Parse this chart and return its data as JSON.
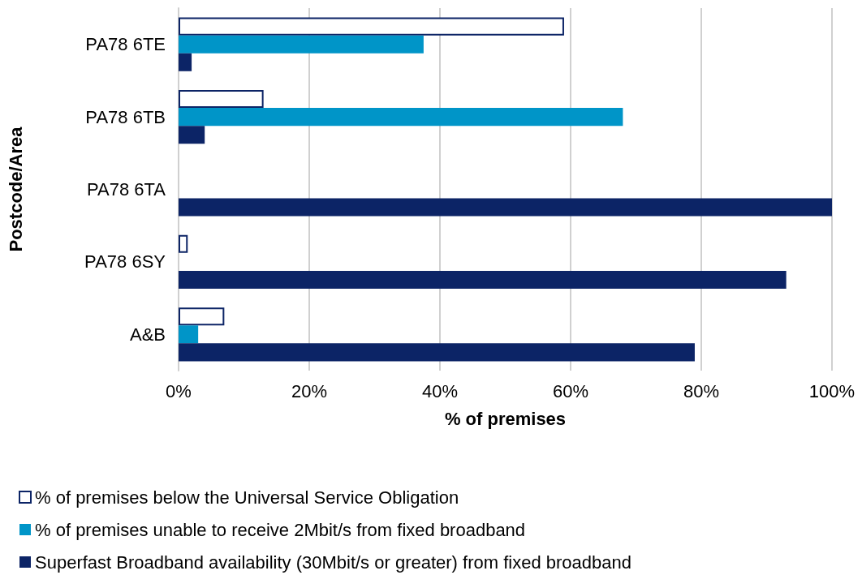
{
  "chart_data": {
    "type": "bar",
    "orientation": "horizontal",
    "categories": [
      "PA78 6TE",
      "PA78 6TB",
      "PA78 6TA",
      "PA78 6SY",
      "A&B"
    ],
    "series": [
      {
        "name": "% of premises below the Universal Service Obligation",
        "color": "#ffffff",
        "values": [
          59,
          13,
          null,
          1.4,
          7
        ]
      },
      {
        "name": "% of premises unable to receive 2Mbit/s from fixed broadband",
        "color": "#0095c8",
        "values": [
          37.5,
          68,
          null,
          null,
          3
        ]
      },
      {
        "name": "Superfast Broadband availability (30Mbit/s or greater) from fixed broadband",
        "color": "#0c2466",
        "values": [
          2,
          4,
          100,
          93,
          79
        ]
      }
    ],
    "xlim": [
      0,
      100
    ],
    "xticks": [
      {
        "value": 0,
        "label": "0%"
      },
      {
        "value": 20,
        "label": "20%"
      },
      {
        "value": 40,
        "label": "40%"
      },
      {
        "value": 60,
        "label": "60%"
      },
      {
        "value": 80,
        "label": "80%"
      },
      {
        "value": 100,
        "label": "100%"
      }
    ],
    "xlabel": "% of premises",
    "ylabel": "Postcode/Area",
    "grid": "x",
    "legend": "bottom"
  }
}
